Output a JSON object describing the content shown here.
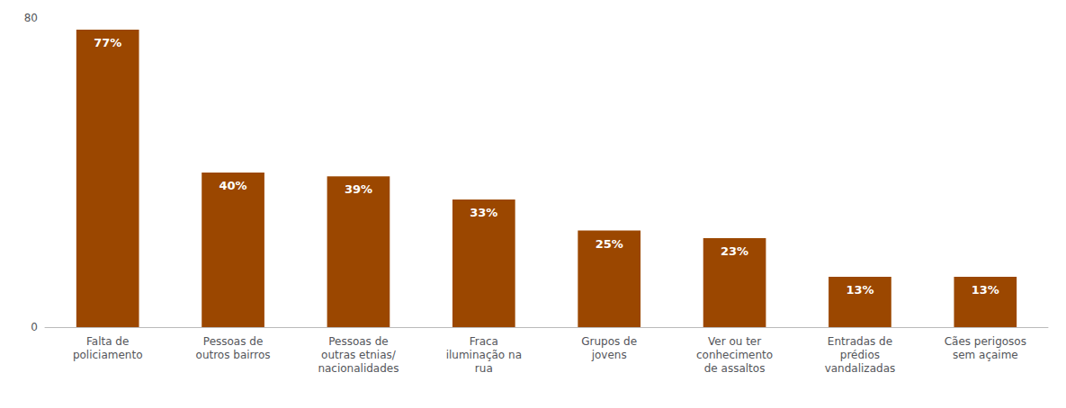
{
  "chart_data": {
    "type": "bar",
    "categories": [
      "Falta de\npoliciamento",
      "Pessoas de\noutros bairros",
      "Pessoas de\noutras etnias/\nnacionalidades",
      "Fraca\niluminação na\nrua",
      "Grupos de\njovens",
      "Ver ou ter\nconhecimento\nde assaltos",
      "Entradas de\nprédios\nvandalizadas",
      "Cães perigosos\nsem açaime"
    ],
    "values": [
      77,
      40,
      39,
      33,
      25,
      23,
      13,
      13
    ],
    "value_labels": [
      "77%",
      "40%",
      "39%",
      "33%",
      "25%",
      "23%",
      "13%",
      "13%"
    ],
    "data_labels": true,
    "color": "#9B4700",
    "ylim": [
      0,
      80
    ],
    "yticks": [
      0,
      80
    ],
    "grid": false
  }
}
